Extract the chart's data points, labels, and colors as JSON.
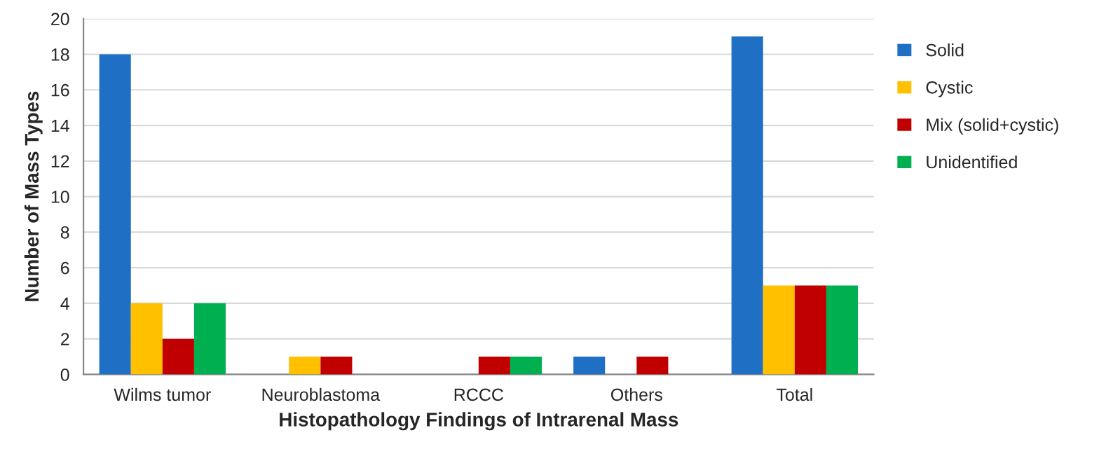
{
  "chart_data": {
    "type": "bar",
    "xlabel": "Histopathology Findings of Intrarenal Mass",
    "ylabel": "Number of Mass Types",
    "categories": [
      "Wilms tumor",
      "Neuroblastoma",
      "RCCC",
      "Others",
      "Total"
    ],
    "series": [
      {
        "name": "Solid",
        "color": "#1f6fc5",
        "values": [
          18,
          0,
          0,
          1,
          19
        ]
      },
      {
        "name": "Cystic",
        "color": "#ffc000",
        "values": [
          4,
          1,
          0,
          0,
          5
        ]
      },
      {
        "name": "Mix (solid+cystic)",
        "color": "#c00000",
        "values": [
          2,
          1,
          1,
          1,
          5
        ]
      },
      {
        "name": "Unidentified",
        "color": "#00b050",
        "values": [
          4,
          0,
          1,
          0,
          5
        ]
      }
    ],
    "ylim": [
      0,
      20
    ],
    "yticks": [
      0,
      2,
      4,
      6,
      8,
      10,
      12,
      14,
      16,
      18,
      20
    ],
    "grid": "y",
    "legend": "right"
  }
}
